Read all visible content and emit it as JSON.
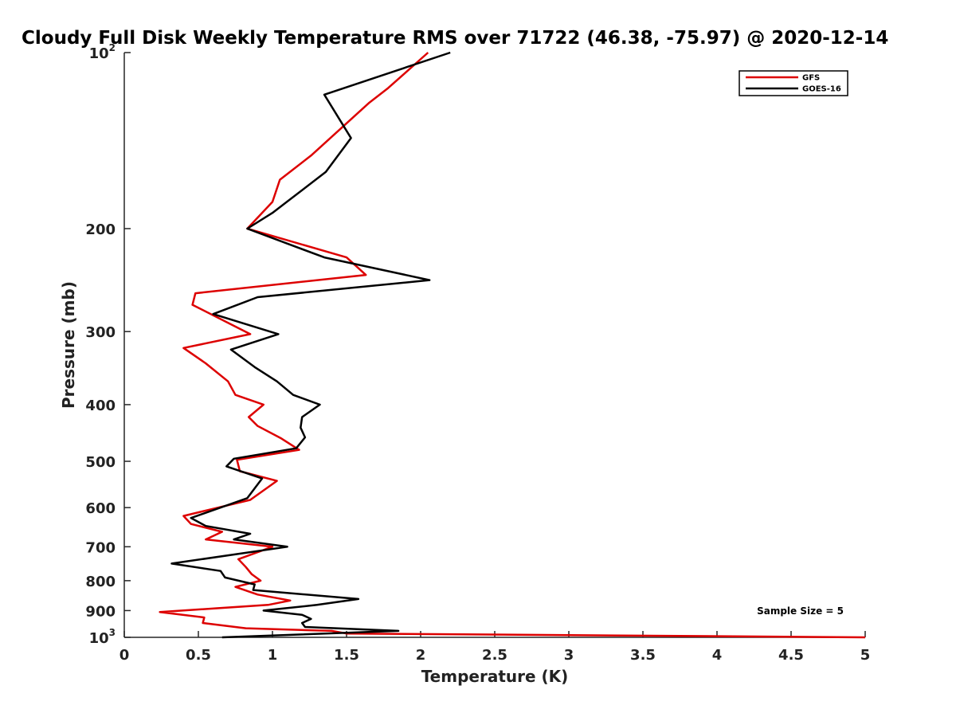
{
  "chart_data": {
    "type": "line",
    "title": "Cloudy Full Disk Weekly Temperature RMS over 71722 (46.38, -75.97) @ 2020-12-14",
    "xlabel": "Temperature (K)",
    "ylabel": "Pressure (mb)",
    "xlim": [
      0,
      5
    ],
    "ylim": [
      100,
      1000
    ],
    "yscale": "log",
    "y_reversed": true,
    "grid": false,
    "legend_position": "top-right",
    "x_ticks": [
      0,
      0.5,
      1,
      1.5,
      2,
      2.5,
      3,
      3.5,
      4,
      4.5,
      5
    ],
    "x_tick_labels": [
      "0",
      "0.5",
      "1",
      "1.5",
      "2",
      "2.5",
      "3",
      "3.5",
      "4",
      "4.5",
      "5"
    ],
    "y_ticks": [
      100,
      200,
      300,
      400,
      500,
      600,
      700,
      800,
      900,
      1000
    ],
    "y_tick_labels": [
      "10^2",
      "200",
      "300",
      "400",
      "500",
      "600",
      "700",
      "800",
      "900",
      "10^3"
    ],
    "annotation": "Sample Size = 5",
    "series": [
      {
        "name": "GFS",
        "color": "#dd0000",
        "points": [
          [
            2.05,
            100
          ],
          [
            1.78,
            115
          ],
          [
            1.65,
            122
          ],
          [
            1.26,
            150
          ],
          [
            1.05,
            165
          ],
          [
            1.0,
            180
          ],
          [
            0.83,
            200
          ],
          [
            1.5,
            224
          ],
          [
            1.63,
            240
          ],
          [
            0.48,
            258
          ],
          [
            0.46,
            270
          ],
          [
            0.85,
            303
          ],
          [
            0.4,
            320
          ],
          [
            0.55,
            340
          ],
          [
            0.7,
            365
          ],
          [
            0.75,
            385
          ],
          [
            0.94,
            400
          ],
          [
            0.84,
            420
          ],
          [
            0.9,
            435
          ],
          [
            1.06,
            457
          ],
          [
            1.18,
            478
          ],
          [
            0.76,
            497
          ],
          [
            0.78,
            520
          ],
          [
            1.03,
            540
          ],
          [
            0.85,
            582
          ],
          [
            0.4,
            620
          ],
          [
            0.45,
            640
          ],
          [
            0.66,
            660
          ],
          [
            0.55,
            680
          ],
          [
            1.0,
            700
          ],
          [
            0.77,
            735
          ],
          [
            0.82,
            758
          ],
          [
            0.86,
            780
          ],
          [
            0.92,
            800
          ],
          [
            0.75,
            820
          ],
          [
            0.9,
            845
          ],
          [
            1.12,
            865
          ],
          [
            0.97,
            880
          ],
          [
            0.24,
            905
          ],
          [
            0.54,
            925
          ],
          [
            0.53,
            945
          ],
          [
            0.82,
            965
          ],
          [
            1.4,
            975
          ],
          [
            1.5,
            985
          ],
          [
            5.0,
            1000
          ]
        ]
      },
      {
        "name": "GOES-16",
        "color": "#000000",
        "points": [
          [
            2.2,
            100
          ],
          [
            1.35,
            118
          ],
          [
            1.53,
            140
          ],
          [
            1.36,
            160
          ],
          [
            1.0,
            188
          ],
          [
            0.83,
            200
          ],
          [
            1.35,
            224
          ],
          [
            2.06,
            245
          ],
          [
            0.9,
            262
          ],
          [
            0.6,
            280
          ],
          [
            1.04,
            303
          ],
          [
            0.72,
            322
          ],
          [
            0.88,
            345
          ],
          [
            1.03,
            365
          ],
          [
            1.14,
            385
          ],
          [
            1.32,
            400
          ],
          [
            1.2,
            420
          ],
          [
            1.19,
            438
          ],
          [
            1.22,
            455
          ],
          [
            1.16,
            475
          ],
          [
            0.74,
            495
          ],
          [
            0.69,
            510
          ],
          [
            0.93,
            535
          ],
          [
            0.83,
            578
          ],
          [
            0.45,
            625
          ],
          [
            0.55,
            645
          ],
          [
            0.85,
            665
          ],
          [
            0.74,
            680
          ],
          [
            1.1,
            700
          ],
          [
            0.32,
            748
          ],
          [
            0.65,
            770
          ],
          [
            0.68,
            790
          ],
          [
            0.88,
            812
          ],
          [
            0.87,
            830
          ],
          [
            1.58,
            860
          ],
          [
            1.3,
            880
          ],
          [
            0.94,
            900
          ],
          [
            1.2,
            915
          ],
          [
            1.26,
            930
          ],
          [
            1.2,
            945
          ],
          [
            1.22,
            960
          ],
          [
            1.85,
            975
          ],
          [
            0.66,
            1000
          ]
        ]
      }
    ]
  }
}
